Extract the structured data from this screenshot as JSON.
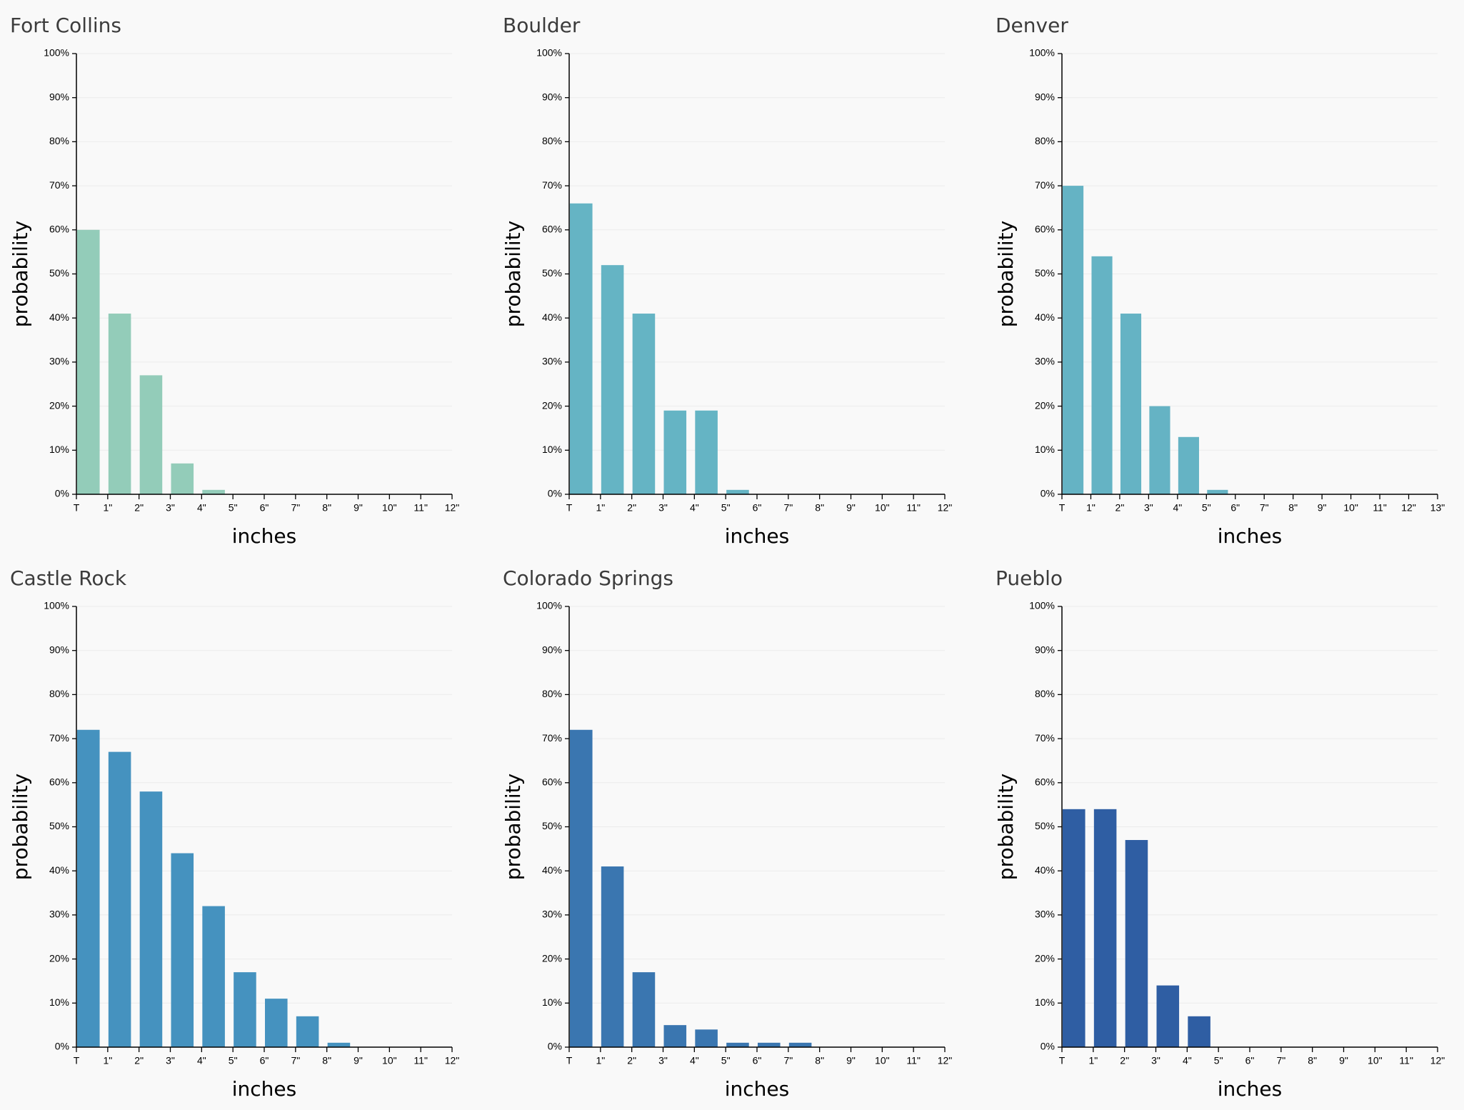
{
  "chart_data": [
    {
      "type": "histogram",
      "title": "Fort Collins",
      "xlabel": "inches",
      "ylabel": "probability",
      "color": "#93ccb9",
      "grid": true,
      "bins": [
        "T",
        "1\"",
        "2\"",
        "3\"",
        "4\"",
        "5\"",
        "6\"",
        "7\"",
        "8\"",
        "9\"",
        "10\"",
        "11\"",
        "12\""
      ],
      "values": [
        60,
        41,
        27,
        7,
        1,
        0,
        0,
        0,
        0,
        0,
        0,
        0
      ],
      "ylim": [
        0,
        100
      ],
      "yticks": [
        {
          "value": 0,
          "label": "0%"
        },
        {
          "value": 10,
          "label": "10%"
        },
        {
          "value": 20,
          "label": "20%"
        },
        {
          "value": 30,
          "label": "30%"
        },
        {
          "value": 40,
          "label": "40%"
        },
        {
          "value": 50,
          "label": "50%"
        },
        {
          "value": 60,
          "label": "60%"
        },
        {
          "value": 70,
          "label": "70%"
        },
        {
          "value": 80,
          "label": "80%"
        },
        {
          "value": 90,
          "label": "90%"
        },
        {
          "value": 100,
          "label": "100%"
        }
      ]
    },
    {
      "type": "histogram",
      "title": "Boulder",
      "xlabel": "inches",
      "ylabel": "probability",
      "color": "#65b4c4",
      "grid": true,
      "bins": [
        "T",
        "1\"",
        "2\"",
        "3\"",
        "4\"",
        "5\"",
        "6\"",
        "7\"",
        "8\"",
        "9\"",
        "10\"",
        "11\"",
        "12\""
      ],
      "values": [
        66,
        52,
        41,
        19,
        19,
        1,
        0,
        0,
        0,
        0,
        0,
        0
      ],
      "ylim": [
        0,
        100
      ],
      "yticks": [
        {
          "value": 0,
          "label": "0%"
        },
        {
          "value": 10,
          "label": "10%"
        },
        {
          "value": 20,
          "label": "20%"
        },
        {
          "value": 30,
          "label": "30%"
        },
        {
          "value": 40,
          "label": "40%"
        },
        {
          "value": 50,
          "label": "50%"
        },
        {
          "value": 60,
          "label": "60%"
        },
        {
          "value": 70,
          "label": "70%"
        },
        {
          "value": 80,
          "label": "80%"
        },
        {
          "value": 90,
          "label": "90%"
        },
        {
          "value": 100,
          "label": "100%"
        }
      ]
    },
    {
      "type": "histogram",
      "title": "Denver",
      "xlabel": "inches",
      "ylabel": "probability",
      "color": "#65b3c4",
      "grid": true,
      "bins": [
        "T",
        "1\"",
        "2\"",
        "3\"",
        "4\"",
        "5\"",
        "6\"",
        "7\"",
        "8\"",
        "9\"",
        "10\"",
        "11\"",
        "12\"",
        "13\""
      ],
      "values": [
        70,
        54,
        41,
        20,
        13,
        1,
        0,
        0,
        0,
        0,
        0,
        0,
        0
      ],
      "ylim": [
        0,
        100
      ],
      "yticks": [
        {
          "value": 0,
          "label": "0%"
        },
        {
          "value": 10,
          "label": "10%"
        },
        {
          "value": 20,
          "label": "20%"
        },
        {
          "value": 30,
          "label": "30%"
        },
        {
          "value": 40,
          "label": "40%"
        },
        {
          "value": 50,
          "label": "50%"
        },
        {
          "value": 60,
          "label": "60%"
        },
        {
          "value": 70,
          "label": "70%"
        },
        {
          "value": 80,
          "label": "80%"
        },
        {
          "value": 90,
          "label": "90%"
        },
        {
          "value": 100,
          "label": "100%"
        }
      ]
    },
    {
      "type": "histogram",
      "title": "Castle Rock",
      "xlabel": "inches",
      "ylabel": "probability",
      "color": "#4592bf",
      "grid": true,
      "bins": [
        "T",
        "1\"",
        "2\"",
        "3\"",
        "4\"",
        "5\"",
        "6\"",
        "7\"",
        "8\"",
        "9\"",
        "10\"",
        "11\"",
        "12\""
      ],
      "values": [
        72,
        67,
        58,
        44,
        32,
        17,
        11,
        7,
        1,
        0,
        0,
        0
      ],
      "ylim": [
        0,
        100
      ],
      "yticks": [
        {
          "value": 0,
          "label": "0%"
        },
        {
          "value": 10,
          "label": "10%"
        },
        {
          "value": 20,
          "label": "20%"
        },
        {
          "value": 30,
          "label": "30%"
        },
        {
          "value": 40,
          "label": "40%"
        },
        {
          "value": 50,
          "label": "50%"
        },
        {
          "value": 60,
          "label": "60%"
        },
        {
          "value": 70,
          "label": "70%"
        },
        {
          "value": 80,
          "label": "80%"
        },
        {
          "value": 90,
          "label": "90%"
        },
        {
          "value": 100,
          "label": "100%"
        }
      ]
    },
    {
      "type": "histogram",
      "title": "Colorado Springs",
      "xlabel": "inches",
      "ylabel": "probability",
      "color": "#3a76b0",
      "grid": true,
      "bins": [
        "T",
        "1\"",
        "2\"",
        "3\"",
        "4\"",
        "5\"",
        "6\"",
        "7\"",
        "8\"",
        "9\"",
        "10\"",
        "11\"",
        "12\""
      ],
      "values": [
        72,
        41,
        17,
        5,
        4,
        1,
        1,
        1,
        0,
        0,
        0,
        0
      ],
      "ylim": [
        0,
        100
      ],
      "yticks": [
        {
          "value": 0,
          "label": "0%"
        },
        {
          "value": 10,
          "label": "10%"
        },
        {
          "value": 20,
          "label": "20%"
        },
        {
          "value": 30,
          "label": "30%"
        },
        {
          "value": 40,
          "label": "40%"
        },
        {
          "value": 50,
          "label": "50%"
        },
        {
          "value": 60,
          "label": "60%"
        },
        {
          "value": 70,
          "label": "70%"
        },
        {
          "value": 80,
          "label": "80%"
        },
        {
          "value": 90,
          "label": "90%"
        },
        {
          "value": 100,
          "label": "100%"
        }
      ]
    },
    {
      "type": "histogram",
      "title": "Pueblo",
      "xlabel": "inches",
      "ylabel": "probability",
      "color": "#2f5ea3",
      "grid": true,
      "bins": [
        "T",
        "1\"",
        "2\"",
        "3\"",
        "4\"",
        "5\"",
        "6\"",
        "7\"",
        "8\"",
        "9\"",
        "10\"",
        "11\"",
        "12\""
      ],
      "values": [
        54,
        54,
        47,
        14,
        7,
        0,
        0,
        0,
        0,
        0,
        0,
        0
      ],
      "ylim": [
        0,
        100
      ],
      "yticks": [
        {
          "value": 0,
          "label": "0%"
        },
        {
          "value": 10,
          "label": "10%"
        },
        {
          "value": 20,
          "label": "20%"
        },
        {
          "value": 30,
          "label": "30%"
        },
        {
          "value": 40,
          "label": "40%"
        },
        {
          "value": 50,
          "label": "50%"
        },
        {
          "value": 60,
          "label": "60%"
        },
        {
          "value": 70,
          "label": "70%"
        },
        {
          "value": 80,
          "label": "80%"
        },
        {
          "value": 90,
          "label": "90%"
        },
        {
          "value": 100,
          "label": "100%"
        }
      ]
    }
  ]
}
